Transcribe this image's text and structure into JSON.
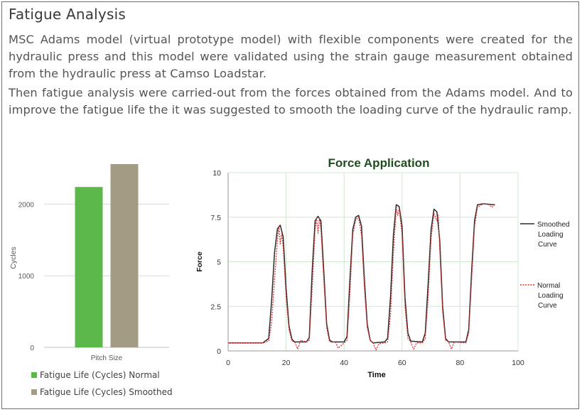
{
  "heading": "Fatigue Analysis",
  "paragraphs": [
    "MSC Adams model (virtual prototype model) with flexible components were created for the hydraulic press and this model were validated using the strain gauge measurement obtained from the hydraulic press at Camso Loadstar.",
    "Then fatigue analysis were carried-out from the forces obtained from the Adams model. And to improve the fatigue life the it was suggested to smooth the loading curve of the hydraulic ramp."
  ],
  "chart_data": [
    {
      "type": "bar",
      "title": "",
      "categories": [
        "Pitch Size"
      ],
      "xlabel": "",
      "ylabel": "Cycles",
      "ylim": [
        0,
        2500
      ],
      "yticks": [
        "0",
        "1000",
        "2000"
      ],
      "grid": true,
      "legend_position": "bottom",
      "series": [
        {
          "name": "Fatigue Life (Cycles) Normal",
          "values": [
            2240
          ],
          "color": "#5cb84a"
        },
        {
          "name": "Fatigue Life (Cycles) Smoothed",
          "values": [
            2560
          ],
          "color": "#a39b84"
        }
      ]
    },
    {
      "type": "line",
      "title": "Force Application",
      "xlabel": "Time",
      "ylabel": "Force",
      "xlim": [
        0,
        100
      ],
      "ylim": [
        0,
        10
      ],
      "xticks": [
        "0",
        "20",
        "40",
        "60",
        "80",
        "100"
      ],
      "yticks": [
        "0",
        "2.5",
        "5",
        "7.5",
        "10"
      ],
      "grid": true,
      "legend_position": "right",
      "series": [
        {
          "name": "Smoothed Loading Curve",
          "color": "#2b2b2b",
          "style": "solid",
          "points": [
            [
              0,
              0.45
            ],
            [
              12,
              0.45
            ],
            [
              14,
              0.7
            ],
            [
              15,
              2.8
            ],
            [
              16,
              5.5
            ],
            [
              17,
              6.85
            ],
            [
              18,
              7.05
            ],
            [
              19,
              6.4
            ],
            [
              20,
              3.5
            ],
            [
              21,
              1.4
            ],
            [
              22,
              0.65
            ],
            [
              23,
              0.5
            ],
            [
              27,
              0.5
            ],
            [
              28,
              0.75
            ],
            [
              29,
              4.5
            ],
            [
              30,
              7.3
            ],
            [
              31,
              7.55
            ],
            [
              32,
              7.3
            ],
            [
              33,
              4.5
            ],
            [
              34,
              1.5
            ],
            [
              35,
              0.6
            ],
            [
              36,
              0.5
            ],
            [
              40,
              0.5
            ],
            [
              41,
              0.8
            ],
            [
              42,
              4.0
            ],
            [
              43,
              6.8
            ],
            [
              44,
              7.5
            ],
            [
              45,
              7.6
            ],
            [
              46,
              7.0
            ],
            [
              47,
              4.0
            ],
            [
              48,
              1.5
            ],
            [
              49,
              0.6
            ],
            [
              50,
              0.45
            ],
            [
              54,
              0.5
            ],
            [
              55,
              0.7
            ],
            [
              56,
              3.0
            ],
            [
              57,
              6.5
            ],
            [
              58,
              8.2
            ],
            [
              59,
              8.1
            ],
            [
              60,
              7.0
            ],
            [
              61,
              3.0
            ],
            [
              62,
              1.0
            ],
            [
              63,
              0.55
            ],
            [
              67,
              0.5
            ],
            [
              68,
              1.0
            ],
            [
              69,
              3.8
            ],
            [
              70,
              6.8
            ],
            [
              71,
              7.95
            ],
            [
              72,
              7.8
            ],
            [
              73,
              6.2
            ],
            [
              74,
              2.5
            ],
            [
              75,
              0.7
            ],
            [
              76,
              0.5
            ],
            [
              82,
              0.5
            ],
            [
              83,
              1.2
            ],
            [
              84,
              4.5
            ],
            [
              85,
              7.3
            ],
            [
              86,
              8.2
            ],
            [
              88,
              8.25
            ],
            [
              92,
              8.2
            ]
          ]
        },
        {
          "name": "Normal Loading Curve",
          "color": "#e03030",
          "style": "dotted",
          "points": [
            [
              0,
              0.45
            ],
            [
              12,
              0.45
            ],
            [
              14,
              0.55
            ],
            [
              15,
              1.6
            ],
            [
              16,
              4.0
            ],
            [
              17,
              6.2
            ],
            [
              17.5,
              7.0
            ],
            [
              18,
              6.0
            ],
            [
              18.5,
              6.6
            ],
            [
              19,
              5.8
            ],
            [
              20,
              3.0
            ],
            [
              21,
              1.2
            ],
            [
              22,
              0.55
            ],
            [
              23,
              0.5
            ],
            [
              24,
              0.1
            ],
            [
              25,
              0.6
            ],
            [
              27,
              0.5
            ],
            [
              28,
              0.6
            ],
            [
              29,
              3.5
            ],
            [
              30,
              6.8
            ],
            [
              30.5,
              7.45
            ],
            [
              31,
              6.6
            ],
            [
              31.5,
              7.45
            ],
            [
              32,
              6.8
            ],
            [
              33,
              4.0
            ],
            [
              34,
              1.3
            ],
            [
              35,
              0.5
            ],
            [
              37,
              0.5
            ],
            [
              38,
              0.15
            ],
            [
              40,
              0.45
            ],
            [
              41,
              0.6
            ],
            [
              42,
              3.2
            ],
            [
              43,
              6.5
            ],
            [
              44,
              7.35
            ],
            [
              45,
              7.5
            ],
            [
              46,
              6.5
            ],
            [
              47,
              3.5
            ],
            [
              48,
              1.3
            ],
            [
              49,
              0.6
            ],
            [
              50,
              0.45
            ],
            [
              51,
              0.05
            ],
            [
              52,
              0.4
            ],
            [
              54,
              0.45
            ],
            [
              55,
              0.5
            ],
            [
              56,
              2.0
            ],
            [
              57,
              5.5
            ],
            [
              58,
              8.0
            ],
            [
              58.5,
              7.6
            ],
            [
              59,
              8.0
            ],
            [
              60,
              6.5
            ],
            [
              61,
              2.5
            ],
            [
              62,
              0.7
            ],
            [
              63,
              0.5
            ],
            [
              64,
              0.1
            ],
            [
              65,
              0.45
            ],
            [
              67,
              0.45
            ],
            [
              68,
              0.7
            ],
            [
              69,
              3.0
            ],
            [
              70,
              6.3
            ],
            [
              71,
              7.7
            ],
            [
              72,
              7.3
            ],
            [
              72.5,
              7.6
            ],
            [
              73,
              5.7
            ],
            [
              74,
              2.2
            ],
            [
              75,
              0.6
            ],
            [
              76,
              0.5
            ],
            [
              77,
              0.1
            ],
            [
              78,
              0.5
            ],
            [
              82,
              0.45
            ],
            [
              83,
              1.0
            ],
            [
              84,
              4.0
            ],
            [
              85,
              7.0
            ],
            [
              86,
              8.05
            ],
            [
              88,
              8.25
            ],
            [
              90,
              8.2
            ],
            [
              91,
              8.05
            ],
            [
              92,
              8.2
            ]
          ]
        }
      ]
    }
  ]
}
